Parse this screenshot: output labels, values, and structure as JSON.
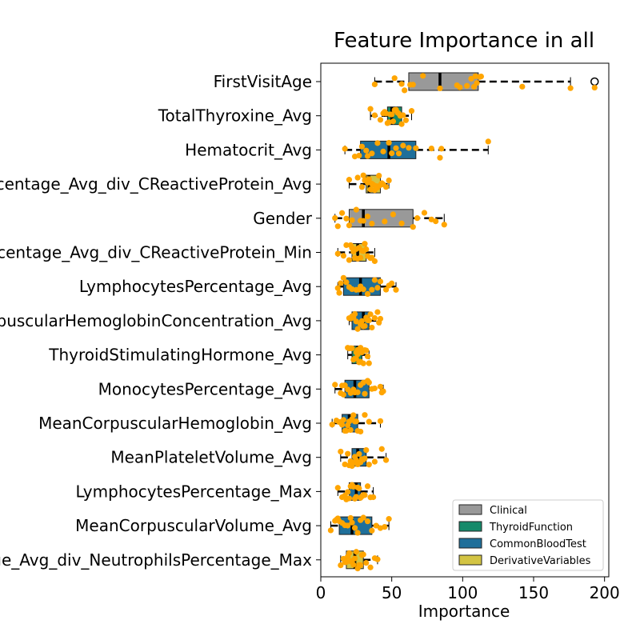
{
  "chart_data": {
    "type": "boxplot",
    "title": "Feature Importance in all",
    "xlabel": "Importance",
    "ylabel": "",
    "xlim": [
      0,
      203
    ],
    "xticks": [
      0,
      50,
      100,
      150,
      200
    ],
    "xtick_labels": [
      "0",
      "50",
      "100",
      "150",
      "200"
    ],
    "grid": false,
    "legend_position": "bottom-right",
    "categories": [
      {
        "name": "Clinical",
        "color": "#999999"
      },
      {
        "name": "ThyroidFunction",
        "color": "#168a6a"
      },
      {
        "name": "CommonBloodTest",
        "color": "#1f6f9a"
      },
      {
        "name": "DerivativeVariables",
        "color": "#d3c443"
      }
    ],
    "point_color": "#ffa500",
    "features": [
      {
        "label": "FirstVisitAge",
        "category": "Clinical",
        "whisker_low": 38,
        "q1": 62,
        "median": 84,
        "q3": 111,
        "whisker_high": 176,
        "outliers": [
          193
        ],
        "points": [
          38,
          52,
          57,
          59,
          63,
          65,
          72,
          84,
          96,
          98,
          103,
          106,
          108,
          109,
          110,
          112,
          113,
          142,
          176,
          193
        ]
      },
      {
        "label": "TotalThyroxine_Avg",
        "category": "ThyroidFunction",
        "whisker_low": 35,
        "q1": 47,
        "median": 50,
        "q3": 57,
        "whisker_high": 64,
        "outliers": [],
        "points": [
          35,
          38,
          42,
          44,
          45,
          46,
          47,
          48,
          49,
          50,
          51,
          52,
          53,
          54,
          55,
          56,
          57,
          58,
          60,
          64
        ]
      },
      {
        "label": "Hematocrit_Avg",
        "category": "CommonBloodTest",
        "whisker_low": 17,
        "q1": 28,
        "median": 48,
        "q3": 67,
        "whisker_high": 118,
        "outliers": [],
        "points": [
          17,
          24,
          27,
          29,
          32,
          33,
          36,
          40,
          44,
          48,
          50,
          53,
          55,
          58,
          62,
          67,
          78,
          84,
          85,
          118
        ]
      },
      {
        "label": "LymphocytesPercentage_Avg_div_CReactiveProtein_Avg",
        "category": "DerivativeVariables",
        "whisker_low": 20,
        "q1": 32,
        "median": 34,
        "q3": 42,
        "whisker_high": 48,
        "outliers": [],
        "points": [
          20,
          26,
          29,
          30,
          31,
          32,
          33,
          34,
          35,
          36,
          37,
          38,
          39,
          40,
          41,
          42,
          43,
          44,
          46,
          48
        ]
      },
      {
        "label": "Gender",
        "category": "Clinical",
        "whisker_low": 10,
        "q1": 20,
        "median": 30,
        "q3": 65,
        "whisker_high": 87,
        "outliers": [],
        "points": [
          10,
          12,
          15,
          18,
          20,
          22,
          25,
          28,
          30,
          33,
          36,
          45,
          51,
          57,
          65,
          68,
          73,
          78,
          81,
          87
        ]
      },
      {
        "label": "LymphocytesPercentage_Avg_div_CReactiveProtein_Min",
        "category": "DerivativeVariables",
        "whisker_low": 12,
        "q1": 22,
        "median": 26,
        "q3": 32,
        "whisker_high": 38,
        "outliers": [],
        "points": [
          12,
          16,
          18,
          20,
          21,
          22,
          23,
          24,
          25,
          26,
          27,
          28,
          29,
          30,
          31,
          32,
          33,
          35,
          36,
          38
        ]
      },
      {
        "label": "LymphocytesPercentage_Avg",
        "category": "CommonBloodTest",
        "whisker_low": 12,
        "q1": 16,
        "median": 28,
        "q3": 42,
        "whisker_high": 53,
        "outliers": [],
        "points": [
          12,
          13,
          14,
          16,
          18,
          20,
          22,
          25,
          27,
          28,
          30,
          33,
          36,
          38,
          40,
          42,
          46,
          48,
          50,
          53
        ]
      },
      {
        "label": "MeanCorpuscularHemoglobinConcentration_Avg",
        "category": "CommonBloodTest",
        "whisker_low": 20,
        "q1": 22,
        "median": 30,
        "q3": 34,
        "whisker_high": 42,
        "outliers": [],
        "points": [
          20,
          21,
          22,
          23,
          24,
          25,
          26,
          28,
          29,
          30,
          31,
          32,
          33,
          34,
          35,
          36,
          38,
          40,
          41,
          42
        ]
      },
      {
        "label": "ThyroidStimulatingHormone_Avg",
        "category": "ThyroidFunction",
        "whisker_low": 19,
        "q1": 22,
        "median": 26,
        "q3": 29,
        "whisker_high": 34,
        "outliers": [],
        "points": [
          19,
          20,
          21,
          22,
          23,
          24,
          25,
          25,
          26,
          26,
          27,
          27,
          28,
          28,
          29,
          30,
          31,
          32,
          33,
          34
        ]
      },
      {
        "label": "MonocytesPercentage_Avg",
        "category": "CommonBloodTest",
        "whisker_low": 10,
        "q1": 17,
        "median": 24,
        "q3": 34,
        "whisker_high": 44,
        "outliers": [],
        "points": [
          10,
          14,
          15,
          16,
          17,
          19,
          21,
          23,
          24,
          26,
          28,
          30,
          31,
          33,
          34,
          36,
          38,
          42,
          43,
          44
        ]
      },
      {
        "label": "MeanCorpuscularHemoglobin_Avg",
        "category": "CommonBloodTest",
        "whisker_low": 8,
        "q1": 15,
        "median": 20,
        "q3": 26,
        "whisker_high": 42,
        "outliers": [],
        "points": [
          8,
          11,
          13,
          14,
          15,
          16,
          17,
          18,
          19,
          20,
          21,
          22,
          23,
          24,
          25,
          26,
          28,
          31,
          34,
          42
        ]
      },
      {
        "label": "MeanPlateletVolume_Avg",
        "category": "CommonBloodTest",
        "whisker_low": 14,
        "q1": 22,
        "median": 26,
        "q3": 32,
        "whisker_high": 46,
        "outliers": [],
        "points": [
          14,
          17,
          19,
          20,
          21,
          22,
          23,
          24,
          25,
          26,
          27,
          28,
          29,
          30,
          31,
          32,
          34,
          38,
          43,
          46
        ]
      },
      {
        "label": "LymphocytesPercentage_Max",
        "category": "CommonBloodTest",
        "whisker_low": 12,
        "q1": 20,
        "median": 25,
        "q3": 28,
        "whisker_high": 37,
        "outliers": [],
        "points": [
          12,
          15,
          17,
          18,
          19,
          20,
          21,
          22,
          23,
          24,
          25,
          26,
          27,
          28,
          29,
          30,
          31,
          33,
          35,
          37
        ]
      },
      {
        "label": "MeanCorpuscularVolume_Avg",
        "category": "CommonBloodTest",
        "whisker_low": 7,
        "q1": 13,
        "median": 22,
        "q3": 36,
        "whisker_high": 48,
        "outliers": [],
        "points": [
          7,
          10,
          11,
          12,
          13,
          15,
          17,
          19,
          21,
          22,
          24,
          26,
          28,
          30,
          33,
          36,
          39,
          42,
          45,
          48
        ]
      },
      {
        "label": "LymphocytesPercentage_Avg_div_NeutrophilsPercentage_Max",
        "category": "DerivativeVariables",
        "whisker_low": 14,
        "q1": 18,
        "median": 24,
        "q3": 30,
        "whisker_high": 40,
        "outliers": [],
        "points": [
          14,
          16,
          17,
          18,
          19,
          20,
          21,
          22,
          23,
          24,
          25,
          26,
          27,
          28,
          29,
          30,
          32,
          35,
          38,
          40
        ]
      }
    ]
  }
}
